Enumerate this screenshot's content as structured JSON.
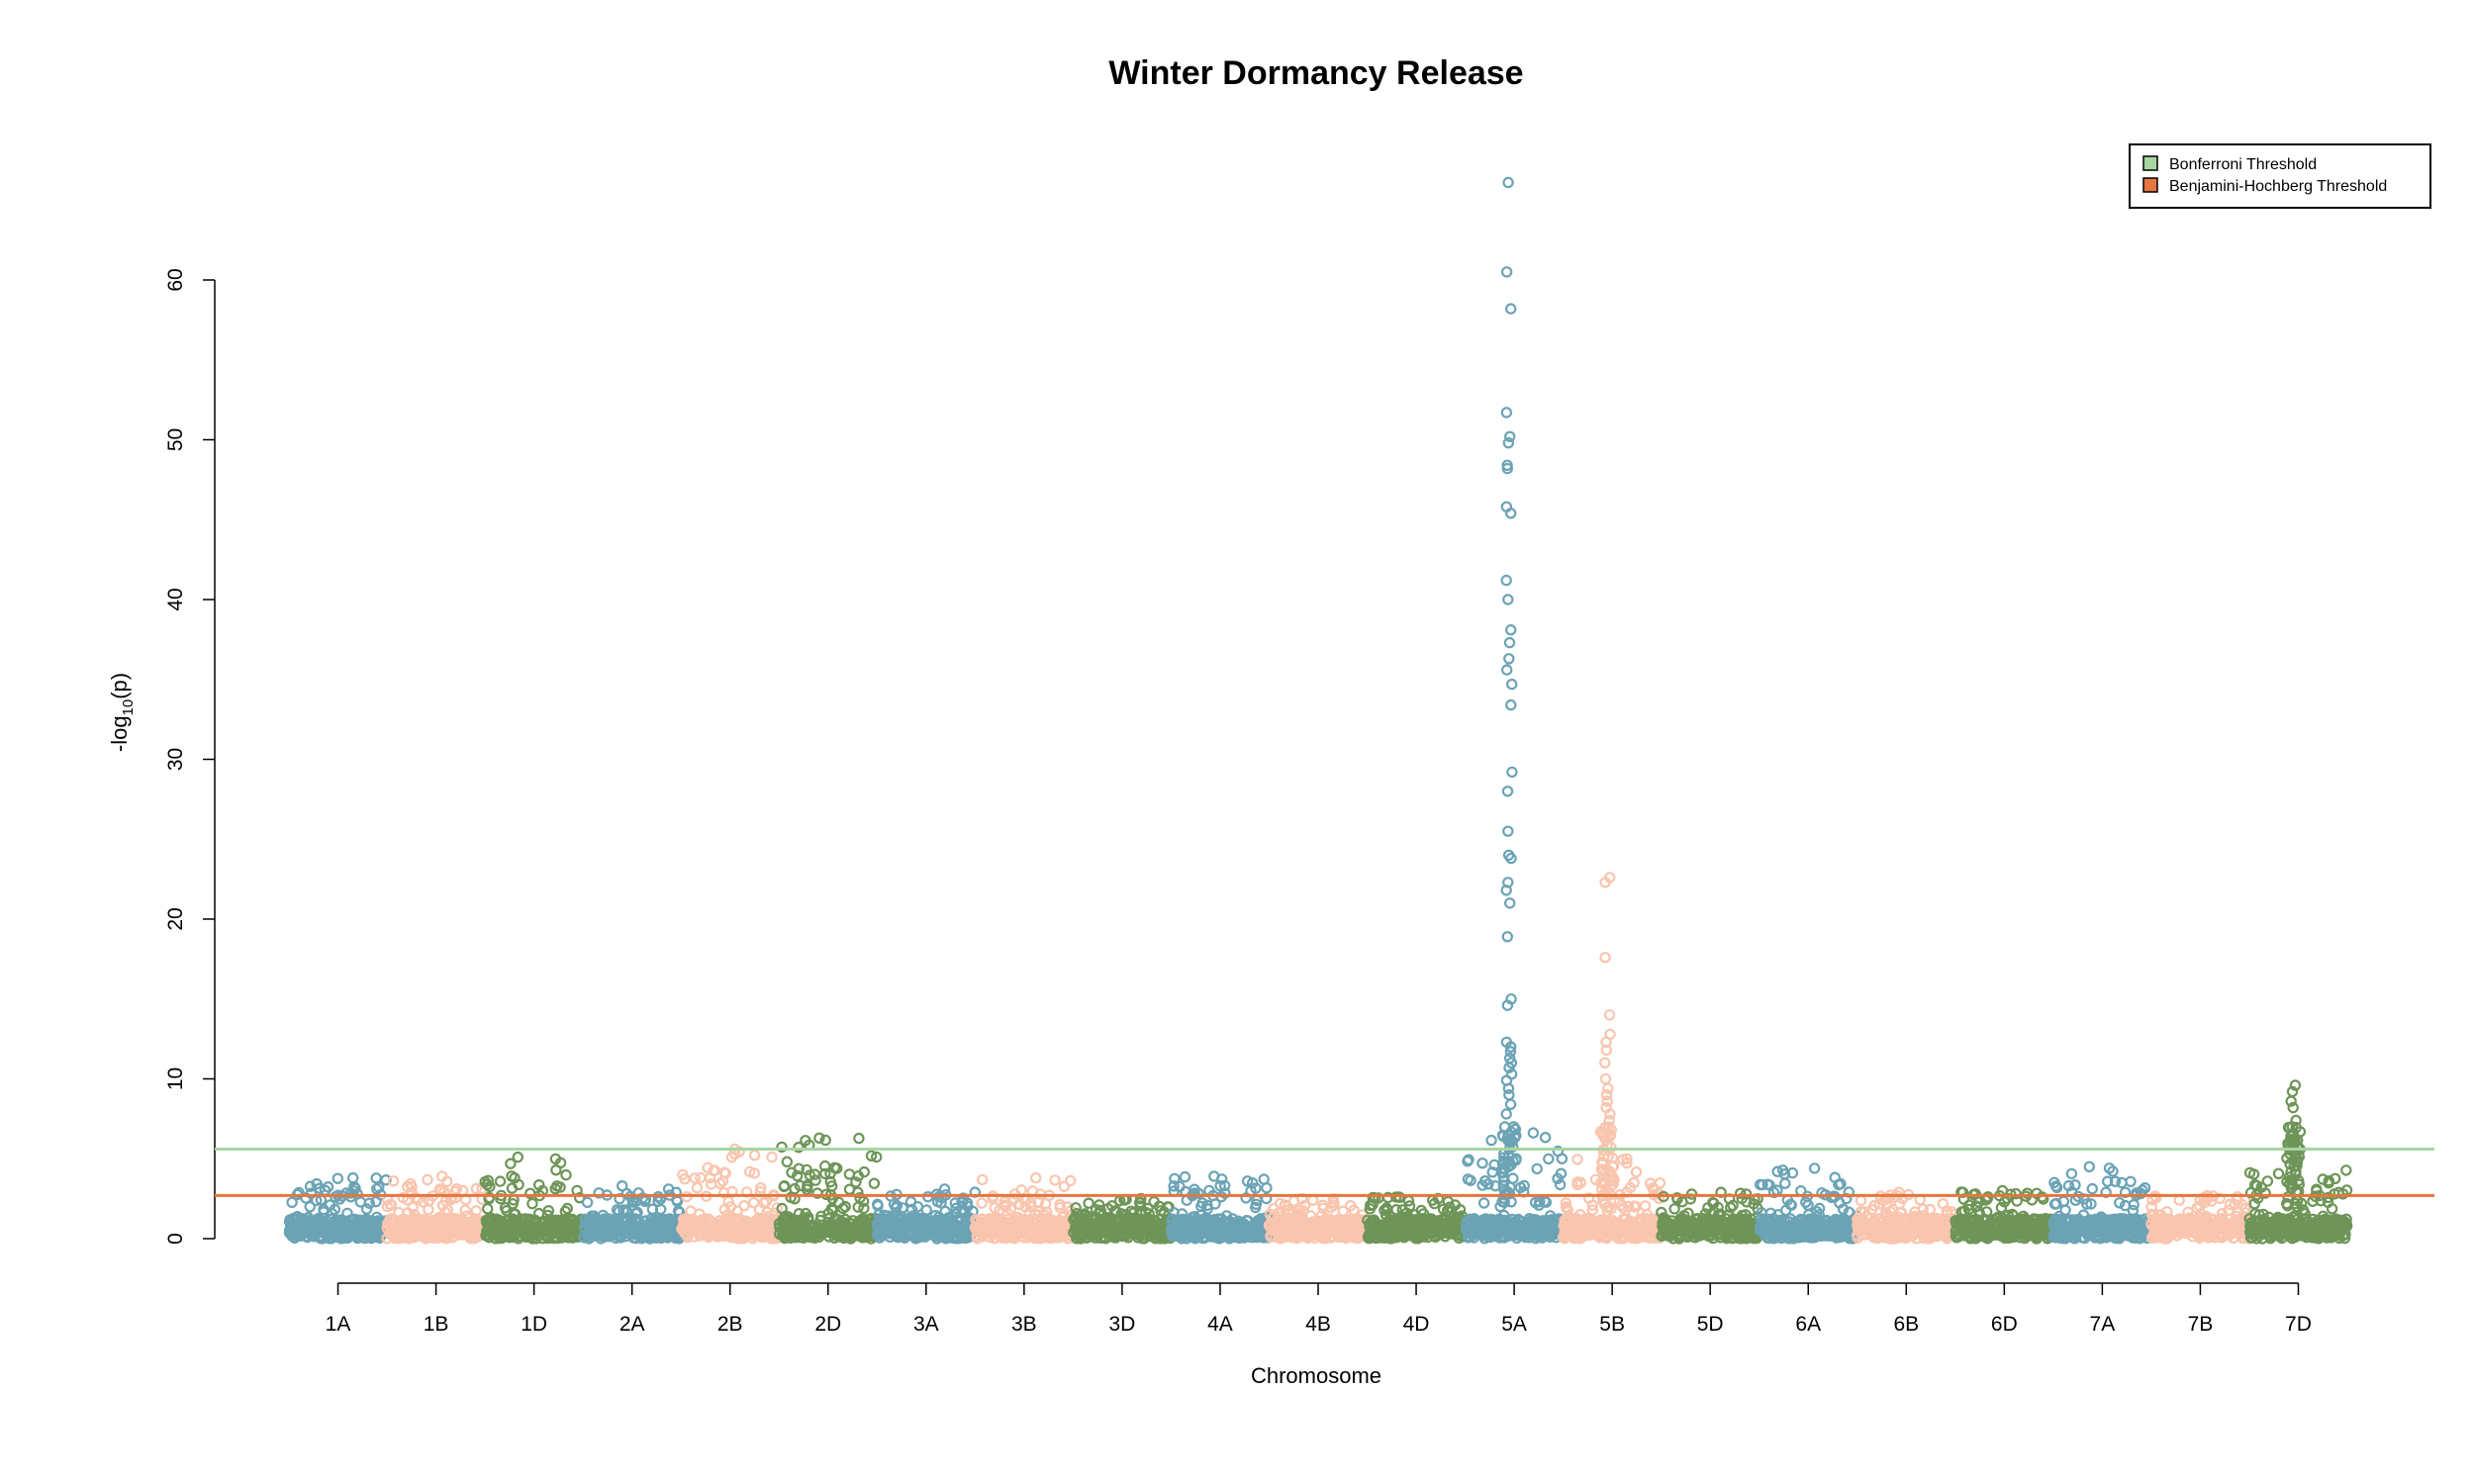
{
  "chart_data": {
    "type": "scatter",
    "subtype": "manhattan",
    "title": "Winter Dormancy Release",
    "xlabel": "Chromosome",
    "ylabel": "-log10(p)",
    "ylim": [
      0,
      66
    ],
    "yticks": [
      0,
      10,
      20,
      30,
      40,
      50,
      60
    ],
    "colors": {
      "blue": "#6BA3B5",
      "peach": "#F9C5AE",
      "green": "#6E9558"
    },
    "thresholds": [
      {
        "name": "Bonferroni Threshold",
        "value": 5.6,
        "color": "#A8D5A2"
      },
      {
        "name": "Benjamini-Hochberg Threshold",
        "value": 2.7,
        "color": "#E5763F"
      }
    ],
    "legend": {
      "placement": "top-right"
    },
    "chromosomes": [
      {
        "name": "1A",
        "color": "blue",
        "peak": 3.8,
        "peaks": []
      },
      {
        "name": "1B",
        "color": "peach",
        "peak": 3.9,
        "peaks": []
      },
      {
        "name": "1D",
        "color": "green",
        "peak": 5.1,
        "peaks": []
      },
      {
        "name": "2A",
        "color": "blue",
        "peak": 3.3,
        "peaks": []
      },
      {
        "name": "2B",
        "color": "peach",
        "peak": 5.6,
        "peaks": []
      },
      {
        "name": "2D",
        "color": "green",
        "peak": 6.3,
        "peaks": []
      },
      {
        "name": "3A",
        "color": "blue",
        "peak": 3.1,
        "peaks": []
      },
      {
        "name": "3B",
        "color": "peach",
        "peak": 3.8,
        "peaks": []
      },
      {
        "name": "3D",
        "color": "green",
        "peak": 2.5,
        "peaks": []
      },
      {
        "name": "4A",
        "color": "blue",
        "peak": 3.9,
        "peaks": []
      },
      {
        "name": "4B",
        "color": "peach",
        "peak": 2.4,
        "peaks": []
      },
      {
        "name": "4D",
        "color": "green",
        "peak": 2.6,
        "peaks": []
      },
      {
        "name": "5A",
        "color": "blue",
        "peak": 7.0,
        "peaks": [
          66.1,
          60.5,
          58.2,
          51.7,
          50.2,
          49.8,
          48.4,
          48.2,
          45.8,
          45.4,
          41.2,
          40.0,
          38.1,
          37.3,
          36.3,
          35.6,
          34.7,
          33.4,
          29.2,
          28.0,
          25.5,
          24.0,
          23.8,
          22.3,
          21.8,
          21.0,
          18.9,
          15.0,
          14.6,
          12.3,
          12.0,
          11.7,
          11.3,
          11.0,
          10.7,
          10.3,
          9.9,
          9.4,
          9.0,
          8.4,
          7.8
        ]
      },
      {
        "name": "5B",
        "color": "peach",
        "peak": 5.0,
        "peaks": [
          22.6,
          22.3,
          17.6,
          14.0,
          12.8,
          12.3,
          11.8,
          11.0,
          10.0,
          9.4,
          9.0,
          8.6,
          8.2,
          7.8,
          7.4,
          7.0,
          6.6,
          6.2,
          5.8
        ]
      },
      {
        "name": "5D",
        "color": "green",
        "peak": 2.9,
        "peaks": []
      },
      {
        "name": "6A",
        "color": "blue",
        "peak": 4.4,
        "peaks": []
      },
      {
        "name": "6B",
        "color": "peach",
        "peak": 2.9,
        "peaks": []
      },
      {
        "name": "6D",
        "color": "green",
        "peak": 3.0,
        "peaks": []
      },
      {
        "name": "7A",
        "color": "blue",
        "peak": 4.5,
        "peaks": []
      },
      {
        "name": "7B",
        "color": "peach",
        "peak": 2.7,
        "peaks": []
      },
      {
        "name": "7D",
        "color": "green",
        "peak": 4.8,
        "peaks": [
          9.6,
          9.2,
          8.6,
          8.2,
          7.4,
          7.0,
          6.6,
          6.2,
          5.6,
          5.2
        ]
      }
    ]
  }
}
